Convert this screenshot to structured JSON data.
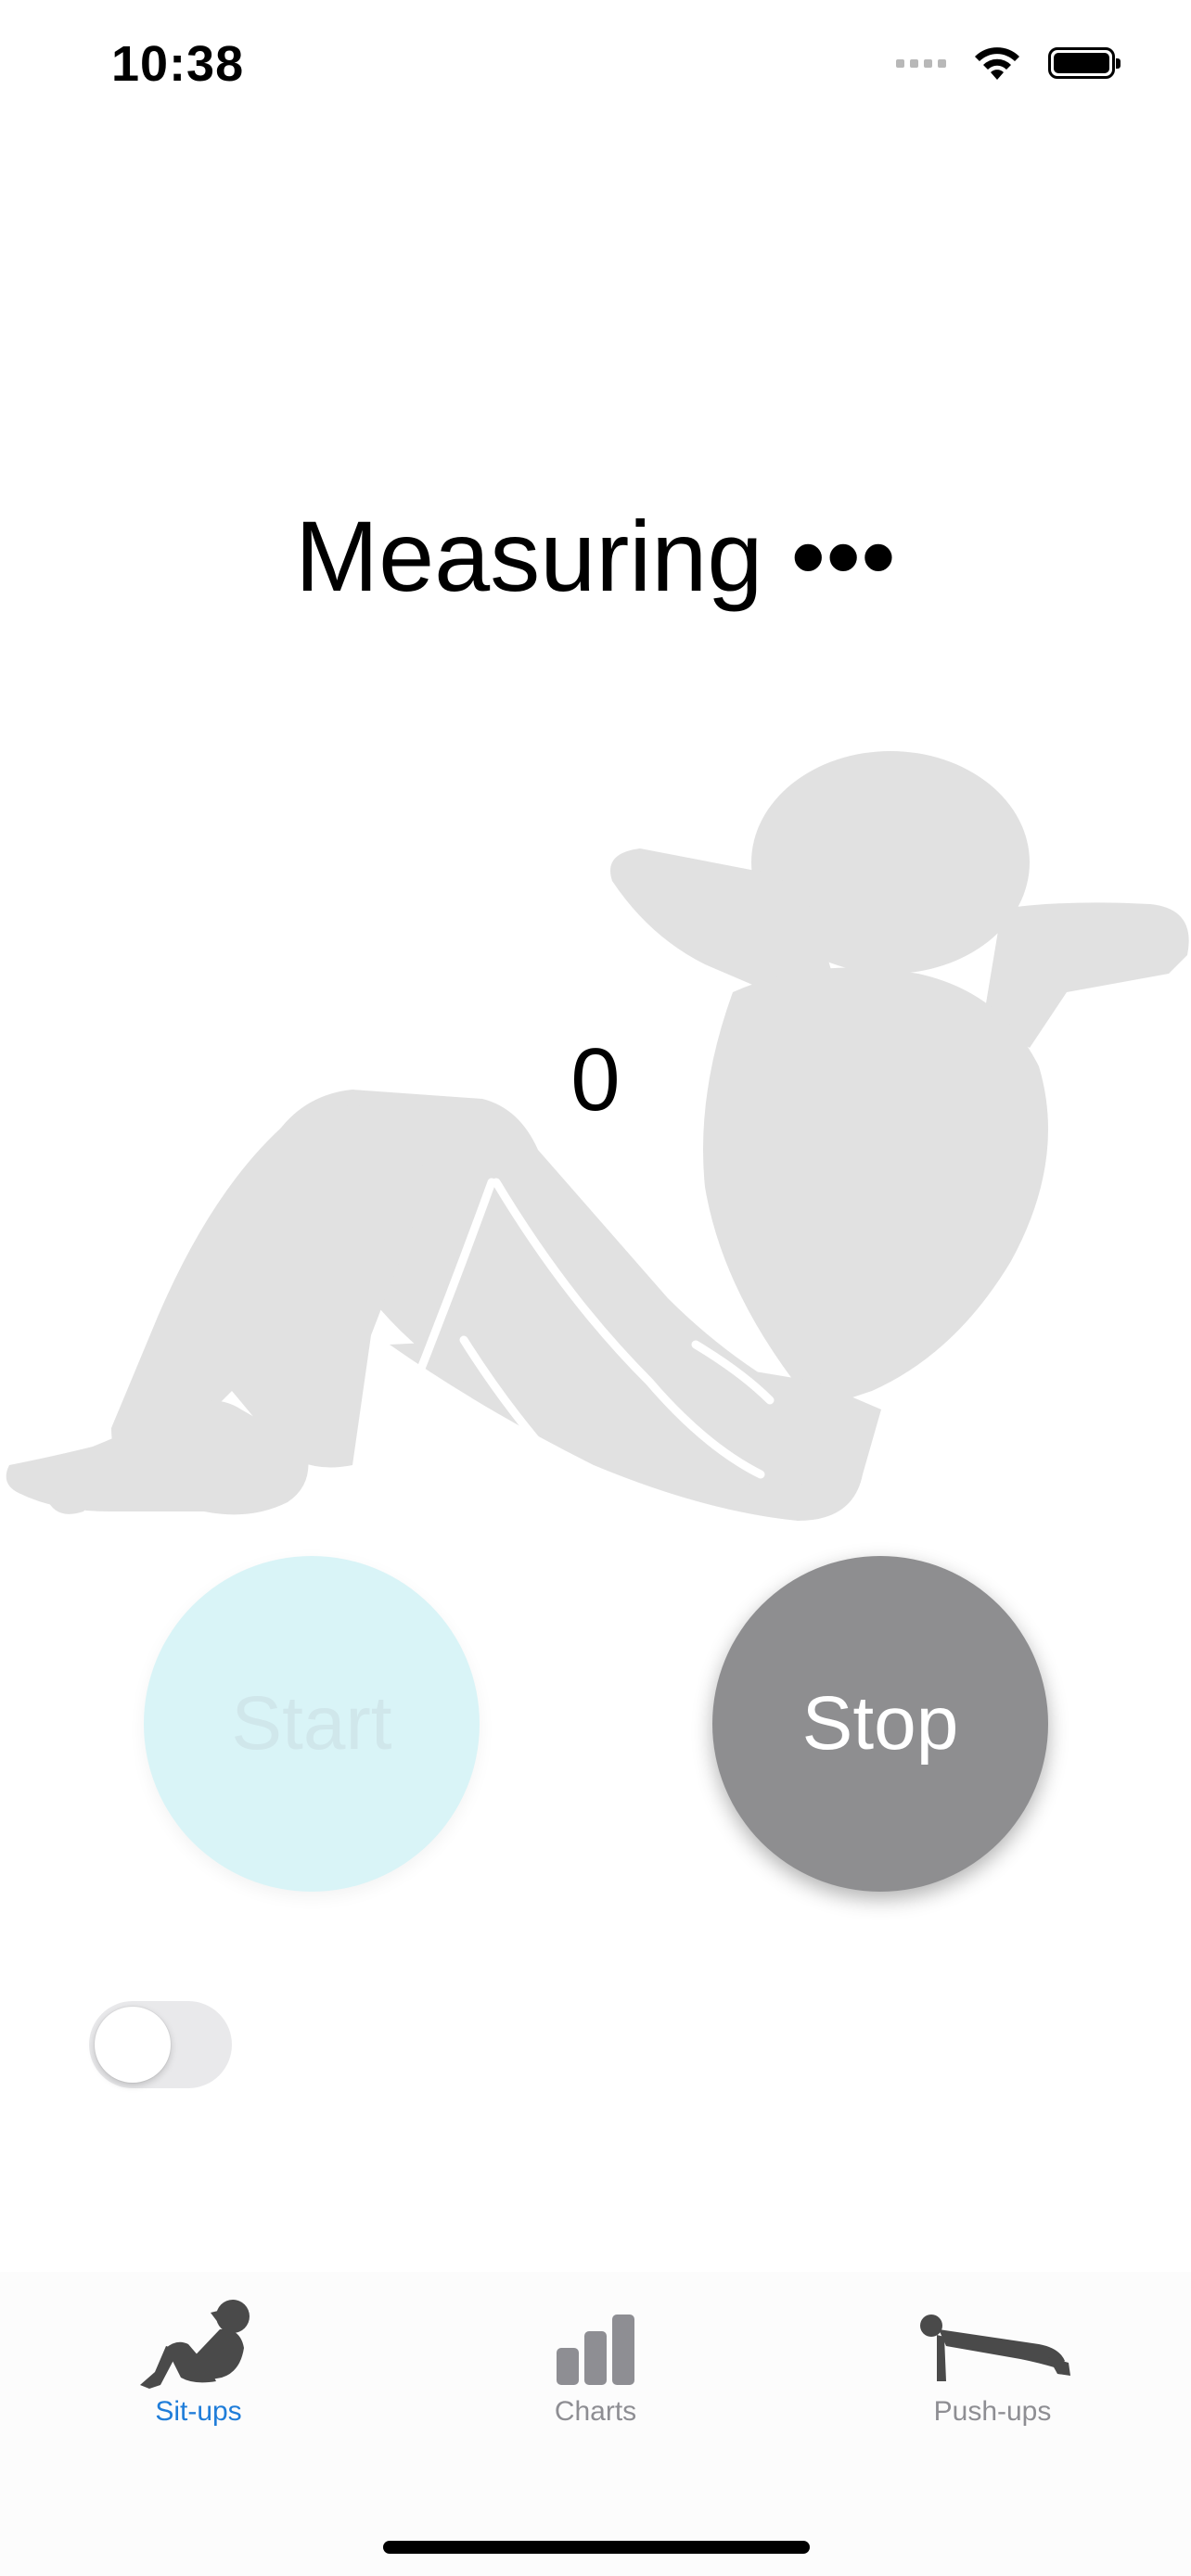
{
  "status_bar": {
    "time": "10:38",
    "icons": [
      "cellular-signal-icon",
      "wifi-icon",
      "battery-icon"
    ]
  },
  "title": "Measuring  •••",
  "count": "0",
  "buttons": {
    "start_label": "Start",
    "stop_label": "Stop"
  },
  "toggle": {
    "on": false
  },
  "tab_bar": {
    "tabs": [
      {
        "label": "Sit-ups",
        "icon": "situp-icon",
        "active": true
      },
      {
        "label": "Charts",
        "icon": "bar-chart-icon",
        "active": false
      },
      {
        "label": "Push-ups",
        "icon": "pushup-icon",
        "active": false
      }
    ]
  },
  "colors": {
    "accent": "#1f7dd9",
    "stop_button": "#8e8e90",
    "start_button": "#aae6ee",
    "silhouette": "#e1e1e1",
    "tab_inactive": "#8e8e93"
  }
}
